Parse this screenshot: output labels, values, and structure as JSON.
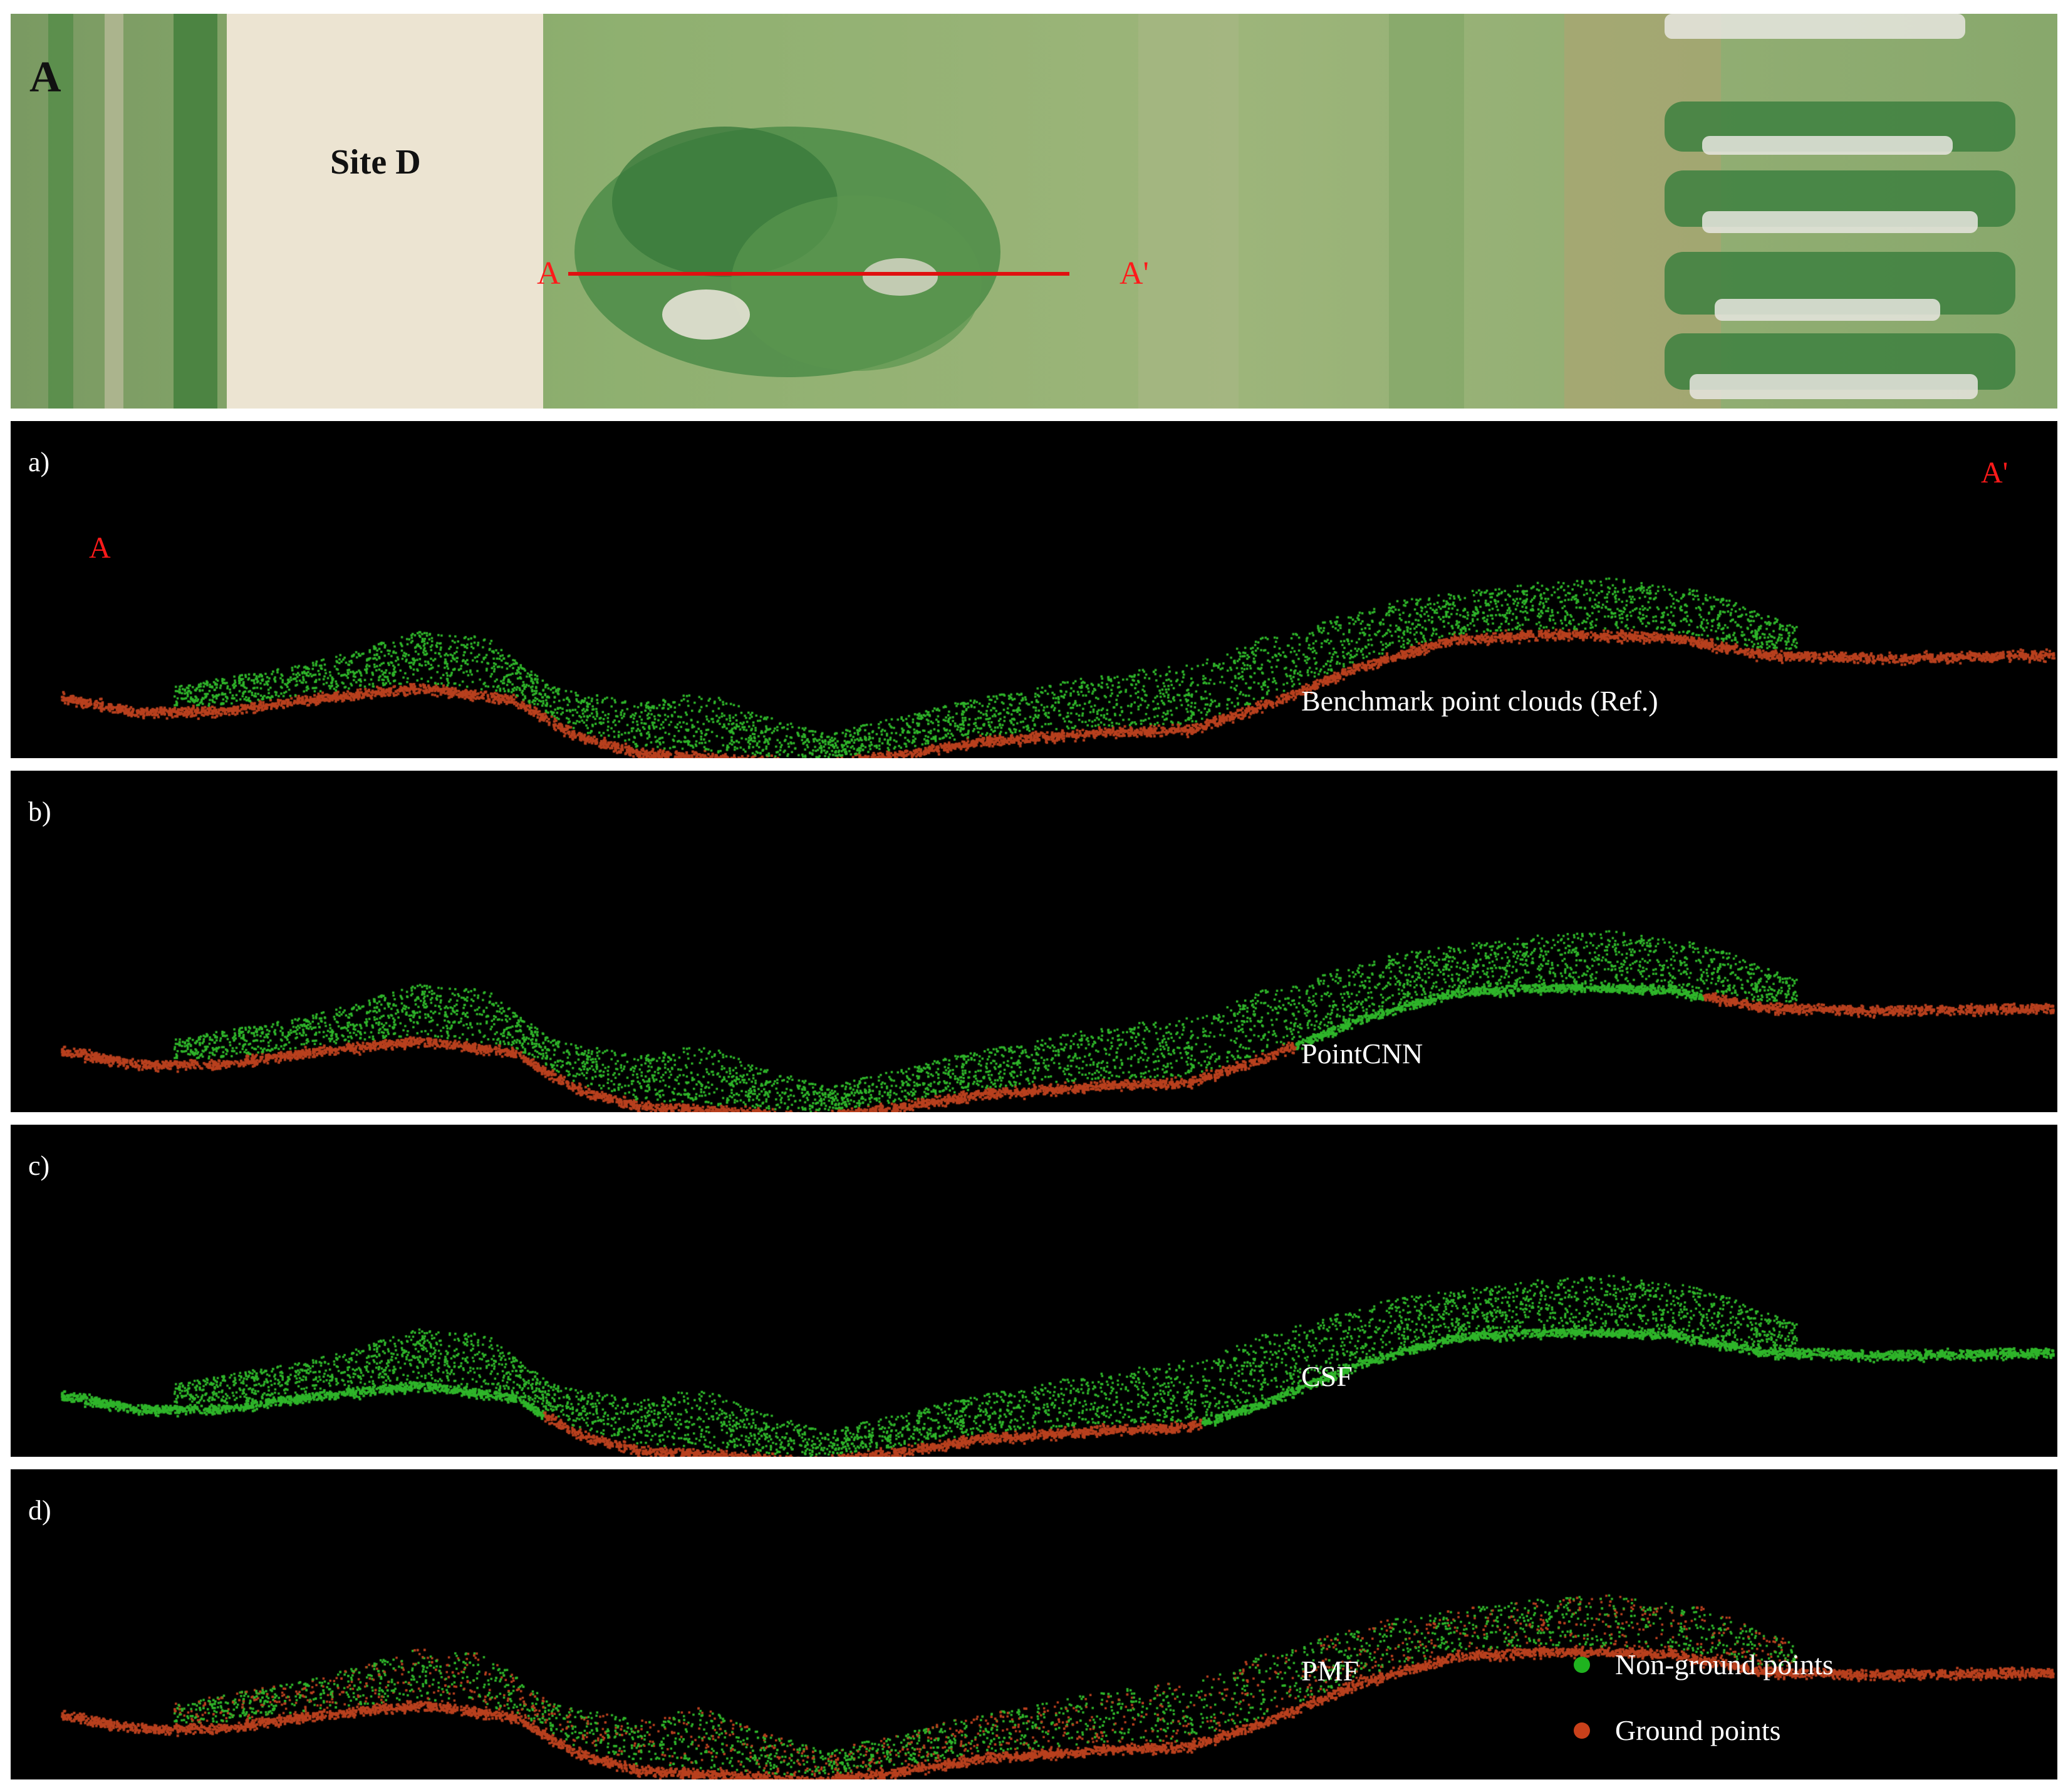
{
  "aerial": {
    "panel_letter": "A",
    "site_label": "Site D",
    "section_start": "A",
    "section_end": "A'"
  },
  "panels": [
    {
      "letter": "a)",
      "method": "Benchmark point clouds (Ref.)"
    },
    {
      "letter": "b)",
      "method": "PointCNN"
    },
    {
      "letter": "c)",
      "method": "CSF"
    },
    {
      "letter": "d)",
      "method": "PMF"
    }
  ],
  "profile_end_labels": {
    "start": "A",
    "end": "A'"
  },
  "legend": {
    "nonground": {
      "label": "Non-ground points",
      "color": "#1fb31f"
    },
    "ground": {
      "label": "Ground points",
      "color": "#c8401a"
    }
  },
  "colors": {
    "ground": "#b8401e",
    "nonground": "#2fb52a",
    "section_line": "#e01010"
  }
}
